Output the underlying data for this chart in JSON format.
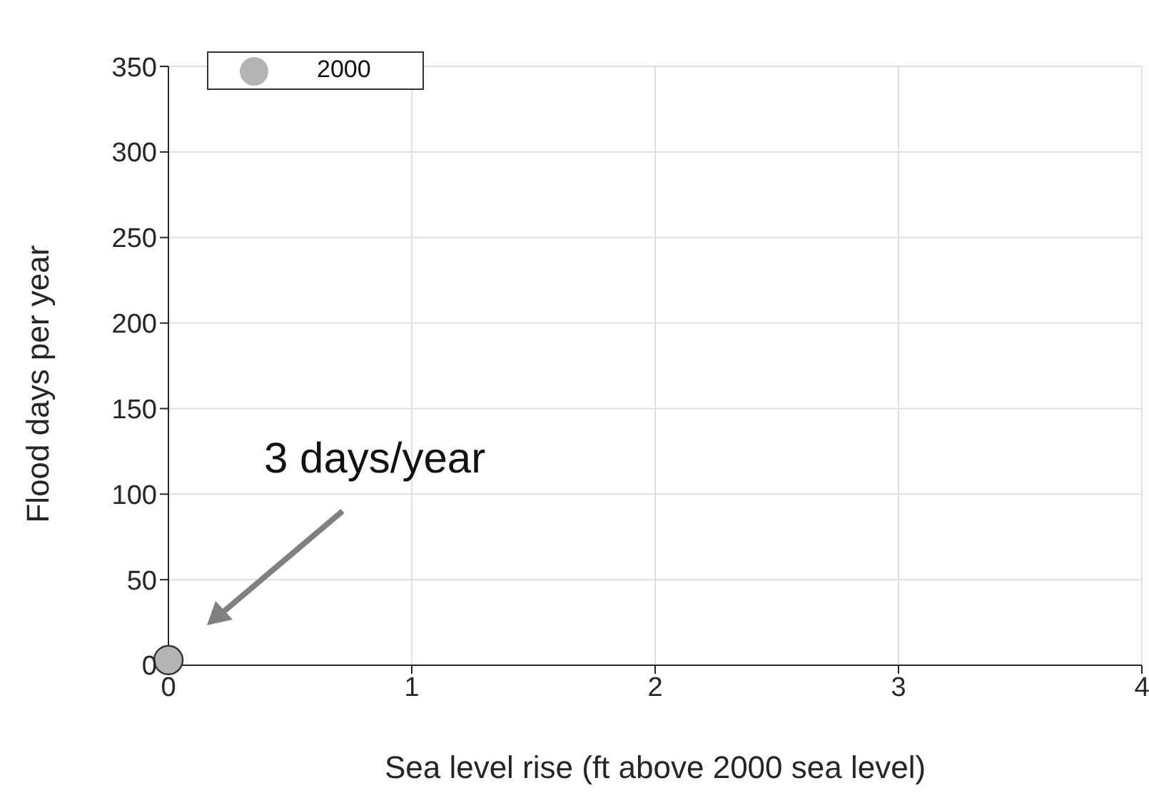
{
  "chart_data": {
    "type": "scatter",
    "xlabel": "Sea level rise (ft above 2000 sea level)",
    "ylabel": "Flood days per year",
    "x": [
      0
    ],
    "series": [
      {
        "name": "2000",
        "color": "#b4b4b4",
        "values": [
          3
        ]
      }
    ],
    "xlim": [
      0,
      4
    ],
    "ylim": [
      0,
      350
    ],
    "xticks": [
      0,
      1,
      2,
      3,
      4
    ],
    "yticks": [
      0,
      50,
      100,
      150,
      200,
      250,
      300,
      350
    ],
    "grid": true,
    "legend": "top left",
    "marker": "circle",
    "annotations": [
      "3 days/year"
    ]
  }
}
